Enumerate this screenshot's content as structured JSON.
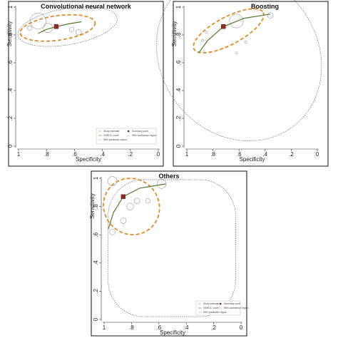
{
  "chart_data": [
    {
      "type": "scatter",
      "title": "Convolutional neural network",
      "xlabel": "Specificity",
      "ylabel": "Sensitivity",
      "xlim": [
        1,
        0
      ],
      "ylim": [
        0,
        1
      ],
      "x_ticks": [
        "1",
        ".8",
        ".6",
        ".4",
        ".2",
        "0"
      ],
      "y_ticks": [
        "0",
        ".2",
        ".4",
        ".6",
        ".8",
        "1"
      ],
      "study_estimates": [
        {
          "specificity": 0.86,
          "sensitivity": 0.9,
          "weight": 7
        },
        {
          "specificity": 0.79,
          "sensitivity": 0.85,
          "weight": 4
        },
        {
          "specificity": 0.92,
          "sensitivity": 0.85,
          "weight": 2
        },
        {
          "specificity": 0.62,
          "sensitivity": 0.84,
          "weight": 2
        },
        {
          "specificity": 0.57,
          "sensitivity": 0.82,
          "weight": 2.5
        }
      ],
      "summary_point": {
        "specificity": 0.73,
        "sensitivity": 0.86
      },
      "hsroc_curve": [
        [
          0.86,
          0.81
        ],
        [
          0.8,
          0.84
        ],
        [
          0.73,
          0.86
        ],
        [
          0.64,
          0.88
        ],
        [
          0.55,
          0.895
        ]
      ],
      "confidence_region": {
        "center": [
          0.72,
          0.85
        ],
        "rx": 0.27,
        "ry": 0.08,
        "angle_deg": -8
      },
      "prediction_region": {
        "center": [
          0.65,
          0.86
        ],
        "rx": 0.36,
        "ry": 0.1,
        "angle_deg": -10
      },
      "legend": {
        "placement": "bottom-right",
        "entries": [
          "Study estimate",
          "Summary point",
          "HSROC curve",
          "95% confidence region",
          "95% prediction region"
        ]
      }
    },
    {
      "type": "scatter",
      "title": "Boosting",
      "xlabel": "Specificity",
      "ylabel": "Sensitivity",
      "xlim": [
        1,
        0
      ],
      "ylim": [
        0,
        1
      ],
      "x_ticks": [
        "1",
        ".8",
        ".6",
        ".4",
        ".2",
        "0"
      ],
      "y_ticks": [
        "0",
        ".2",
        ".4",
        ".6",
        ".8",
        "1"
      ],
      "study_estimates": [
        {
          "specificity": 0.62,
          "sensitivity": 0.9,
          "weight": 6
        },
        {
          "specificity": 0.85,
          "sensitivity": 0.82,
          "weight": 1
        },
        {
          "specificity": 0.88,
          "sensitivity": 0.76,
          "weight": 1
        },
        {
          "specificity": 0.55,
          "sensitivity": 0.75,
          "weight": 1
        },
        {
          "specificity": 0.62,
          "sensitivity": 0.67,
          "weight": 1
        },
        {
          "specificity": 0.36,
          "sensitivity": 0.94,
          "weight": 2.5
        }
      ],
      "summary_point": {
        "specificity": 0.72,
        "sensitivity": 0.86
      },
      "hsroc_curve": [
        [
          0.91,
          0.67
        ],
        [
          0.84,
          0.76
        ],
        [
          0.72,
          0.86
        ],
        [
          0.56,
          0.92
        ],
        [
          0.36,
          0.95
        ]
      ],
      "confidence_region": {
        "center": [
          0.68,
          0.83
        ],
        "rx": 0.3,
        "ry": 0.09,
        "angle_deg": -28
      },
      "prediction_region": {
        "center": [
          0.6,
          0.65
        ],
        "rx": 0.6,
        "ry": 0.4,
        "angle_deg": -38
      },
      "legend": {
        "placement": "none",
        "entries": []
      }
    },
    {
      "type": "scatter",
      "title": "Others",
      "xlabel": "Specificity",
      "ylabel": "Sensitivity",
      "xlim": [
        1,
        0
      ],
      "ylim": [
        0,
        1
      ],
      "x_ticks": [
        "1",
        ".8",
        ".6",
        ".4",
        ".2",
        "0"
      ],
      "y_ticks": [
        "0",
        ".2",
        ".4",
        ".6",
        ".8",
        "1"
      ],
      "study_estimates": [
        {
          "specificity": 0.94,
          "sensitivity": 0.98,
          "weight": 4
        },
        {
          "specificity": 0.58,
          "sensitivity": 0.96,
          "weight": 4
        },
        {
          "specificity": 0.81,
          "sensitivity": 0.8,
          "weight": 3
        },
        {
          "specificity": 0.76,
          "sensitivity": 0.84,
          "weight": 2.5
        },
        {
          "specificity": 0.68,
          "sensitivity": 0.84,
          "weight": 2
        },
        {
          "specificity": 0.86,
          "sensitivity": 0.7,
          "weight": 2.5
        },
        {
          "specificity": 0.94,
          "sensitivity": 0.62,
          "weight": 2.5
        }
      ],
      "summary_point": {
        "specificity": 0.86,
        "sensitivity": 0.87
      },
      "hsroc_curve": [
        [
          0.97,
          0.64
        ],
        [
          0.93,
          0.76
        ],
        [
          0.86,
          0.87
        ],
        [
          0.74,
          0.93
        ],
        [
          0.55,
          0.96
        ]
      ],
      "confidence_region": {
        "center": [
          0.8,
          0.8
        ],
        "rx": 0.2,
        "ry": 0.12,
        "angle_deg": -42
      },
      "prediction_region": {
        "type": "rounded-square",
        "x0": 0.97,
        "x1": 0.04,
        "y0": 0.02,
        "y1": 0.99
      },
      "legend": {
        "placement": "bottom-right",
        "entries": [
          "Study estimate",
          "Summary point",
          "HSROC curve",
          "95% confidence region",
          "95% prediction region"
        ]
      }
    }
  ]
}
